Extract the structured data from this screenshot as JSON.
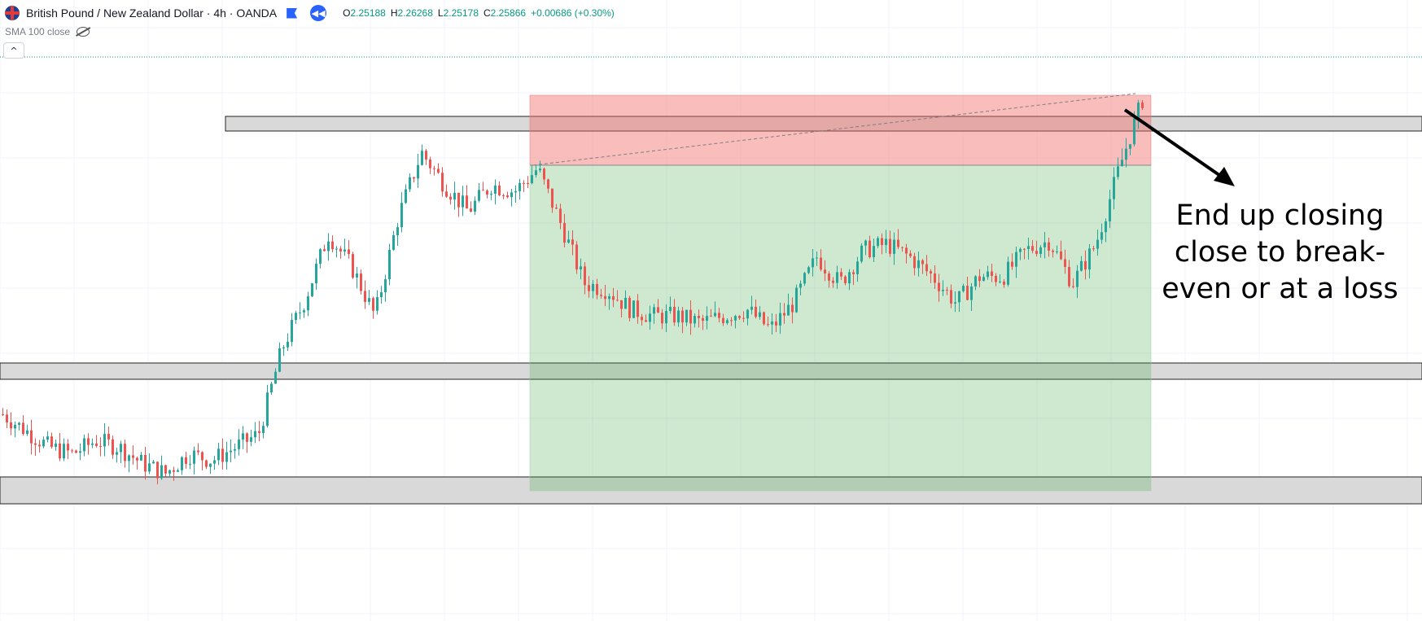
{
  "header": {
    "symbol_title": "British Pound / New Zealand Dollar · 4h · OANDA",
    "ohlc": [
      {
        "key": "O",
        "value": "2.25188"
      },
      {
        "key": "H",
        "value": "2.26268"
      },
      {
        "key": "L",
        "value": "2.25178"
      },
      {
        "key": "C",
        "value": "2.25866"
      }
    ],
    "change": "+0.00686 (+0.30%)"
  },
  "indicator": {
    "label": "SMA 100 close"
  },
  "annotation": {
    "line1": "End up closing",
    "line2": "close to break-",
    "line3": "even or at a loss"
  },
  "colors": {
    "bull": "#26a69a",
    "bear": "#ef5350",
    "stop_zone": "#f7a9a7",
    "target_zone": "#b7e1bd",
    "sr_zone": "#d9d9d9",
    "accent": "#2962ff"
  },
  "chart_data": {
    "type": "candlestick",
    "series": [
      {
        "name": "GBP/NZD 4h",
        "close_path": [
          2.18,
          2.175,
          2.17,
          2.168,
          2.172,
          2.17,
          2.165,
          2.162,
          2.168,
          2.166,
          2.17,
          2.174,
          2.2,
          2.215,
          2.235,
          2.225,
          2.21,
          2.24,
          2.26,
          2.25,
          2.242,
          2.25,
          2.248,
          2.255,
          2.238,
          2.22,
          2.218,
          2.212,
          2.21,
          2.21,
          2.208,
          2.21,
          2.212,
          2.206,
          2.214,
          2.228,
          2.22,
          2.23,
          2.232,
          2.228,
          2.222,
          2.214,
          2.222,
          2.222,
          2.23,
          2.233,
          2.22,
          2.232,
          2.255,
          2.276
        ]
      }
    ],
    "levels": [
      {
        "name": "resistance",
        "role": "supply"
      },
      {
        "name": "mid-support",
        "role": "demand"
      },
      {
        "name": "support",
        "role": "demand"
      }
    ],
    "position": {
      "type": "short",
      "stop_zone": "red",
      "target_zone": "green"
    }
  }
}
